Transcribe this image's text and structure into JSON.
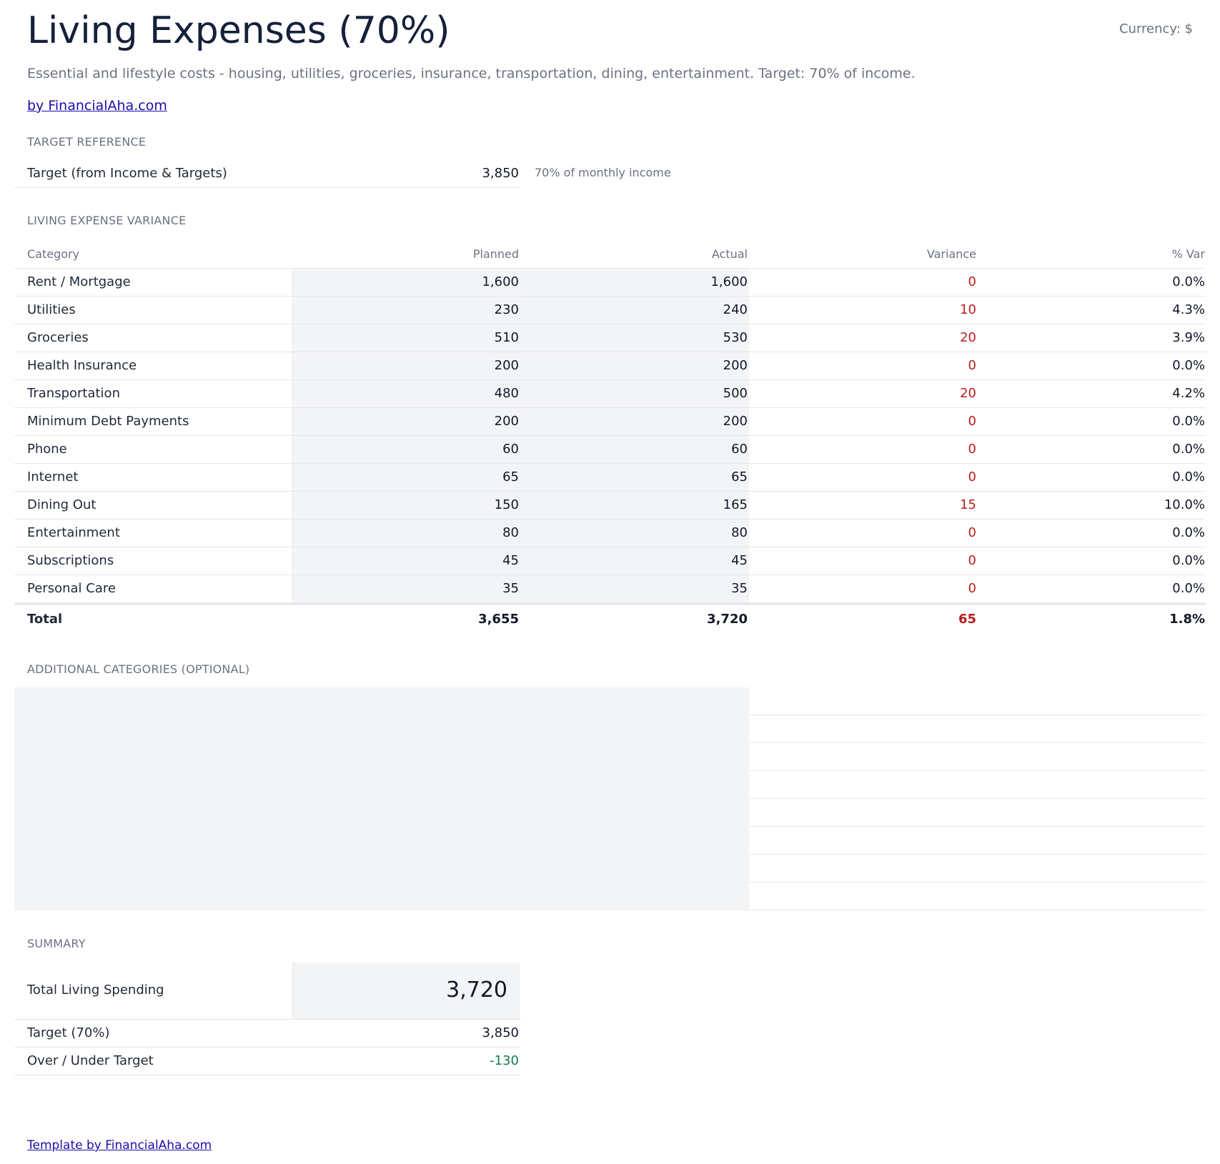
{
  "header": {
    "title": "Living Expenses (70%)",
    "currency": "Currency: $",
    "subtitle": "Essential and lifestyle costs - housing, utilities, groceries, insurance, transportation, dining, entertainment. Target: 70% of income.",
    "byline": "by FinancialAha.com"
  },
  "target_reference": {
    "heading": "TARGET REFERENCE",
    "label": "Target (from Income & Targets)",
    "value": "3,850",
    "note": "70% of monthly income"
  },
  "variance": {
    "heading": "LIVING EXPENSE VARIANCE",
    "columns": {
      "category": "Category",
      "planned": "Planned",
      "actual": "Actual",
      "variance": "Variance",
      "pct": "% Var"
    },
    "rows": [
      {
        "category": "Rent / Mortgage",
        "planned": "1,600",
        "actual": "1,600",
        "variance": "0",
        "pct": "0.0%"
      },
      {
        "category": "Utilities",
        "planned": "230",
        "actual": "240",
        "variance": "10",
        "pct": "4.3%"
      },
      {
        "category": "Groceries",
        "planned": "510",
        "actual": "530",
        "variance": "20",
        "pct": "3.9%"
      },
      {
        "category": "Health Insurance",
        "planned": "200",
        "actual": "200",
        "variance": "0",
        "pct": "0.0%"
      },
      {
        "category": "Transportation",
        "planned": "480",
        "actual": "500",
        "variance": "20",
        "pct": "4.2%"
      },
      {
        "category": "Minimum Debt Payments",
        "planned": "200",
        "actual": "200",
        "variance": "0",
        "pct": "0.0%"
      },
      {
        "category": "Phone",
        "planned": "60",
        "actual": "60",
        "variance": "0",
        "pct": "0.0%"
      },
      {
        "category": "Internet",
        "planned": "65",
        "actual": "65",
        "variance": "0",
        "pct": "0.0%"
      },
      {
        "category": "Dining Out",
        "planned": "150",
        "actual": "165",
        "variance": "15",
        "pct": "10.0%"
      },
      {
        "category": "Entertainment",
        "planned": "80",
        "actual": "80",
        "variance": "0",
        "pct": "0.0%"
      },
      {
        "category": "Subscriptions",
        "planned": "45",
        "actual": "45",
        "variance": "0",
        "pct": "0.0%"
      },
      {
        "category": "Personal Care",
        "planned": "35",
        "actual": "35",
        "variance": "0",
        "pct": "0.0%"
      }
    ],
    "total": {
      "category": "Total",
      "planned": "3,655",
      "actual": "3,720",
      "variance": "65",
      "pct": "1.8%"
    }
  },
  "additional": {
    "heading": "ADDITIONAL CATEGORIES (OPTIONAL)"
  },
  "summary": {
    "heading": "SUMMARY",
    "total_label": "Total Living Spending",
    "total_value": "3,720",
    "target_label": "Target (70%)",
    "target_value": "3,850",
    "over_under_label": "Over / Under Target",
    "over_under_value": "-130"
  },
  "footer": {
    "link": "Template by FinancialAha.com"
  },
  "colors": {
    "title": "#15213b",
    "variance_positive": "#b91c1c",
    "under_target": "#0f7a4a",
    "input_shade": "#f3f4f6",
    "link": "#1a0dab"
  }
}
